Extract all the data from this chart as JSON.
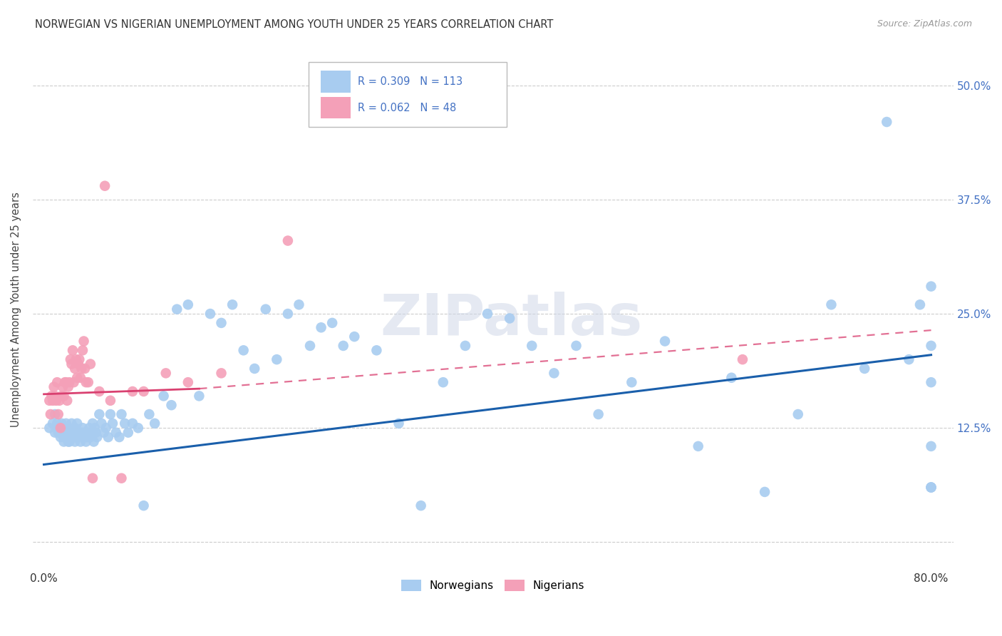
{
  "title": "NORWEGIAN VS NIGERIAN UNEMPLOYMENT AMONG YOUTH UNDER 25 YEARS CORRELATION CHART",
  "source": "Source: ZipAtlas.com",
  "ylabel": "Unemployment Among Youth under 25 years",
  "xlim": [
    -0.01,
    0.82
  ],
  "ylim": [
    -0.03,
    0.54
  ],
  "yticks": [
    0.0,
    0.125,
    0.25,
    0.375,
    0.5
  ],
  "ytick_labels": [
    "",
    "12.5%",
    "25.0%",
    "37.5%",
    "50.0%"
  ],
  "xticks": [
    0.0,
    0.2,
    0.4,
    0.6,
    0.8
  ],
  "xtick_labels": [
    "0.0%",
    "",
    "",
    "",
    "80.0%"
  ],
  "norwegian_color": "#A8CCF0",
  "nigerian_color": "#F4A0B8",
  "trendline_norwegian_color": "#1A5FAB",
  "trendline_nigerian_color": "#D94070",
  "watermark": "ZIPatlas",
  "background_color": "#FFFFFF",
  "grid_color": "#CCCCCC",
  "title_fontsize": 10.5,
  "label_fontsize": 10.5,
  "tick_color": "#4472C4",
  "tick_fontsize": 11,
  "legend_R_norwegian": "R = 0.309",
  "legend_N_norwegian": "N = 113",
  "legend_R_nigerian": "R = 0.062",
  "legend_N_nigerian": "N = 48",
  "nor_trend_x0": 0.0,
  "nor_trend_y0": 0.085,
  "nor_trend_x1": 0.8,
  "nor_trend_y1": 0.205,
  "nig_trend_solid_x0": 0.0,
  "nig_trend_solid_y0": 0.162,
  "nig_trend_solid_x1": 0.14,
  "nig_trend_solid_y1": 0.168,
  "nig_trend_dash_x0": 0.14,
  "nig_trend_dash_y0": 0.168,
  "nig_trend_dash_x1": 0.8,
  "nig_trend_dash_y1": 0.232,
  "norwegian_x": [
    0.005,
    0.008,
    0.01,
    0.01,
    0.012,
    0.013,
    0.015,
    0.015,
    0.016,
    0.017,
    0.018,
    0.018,
    0.019,
    0.02,
    0.02,
    0.021,
    0.022,
    0.022,
    0.023,
    0.023,
    0.024,
    0.025,
    0.025,
    0.026,
    0.027,
    0.028,
    0.028,
    0.029,
    0.03,
    0.03,
    0.031,
    0.032,
    0.033,
    0.034,
    0.035,
    0.036,
    0.037,
    0.038,
    0.039,
    0.04,
    0.041,
    0.042,
    0.043,
    0.044,
    0.045,
    0.046,
    0.047,
    0.048,
    0.05,
    0.052,
    0.054,
    0.056,
    0.058,
    0.06,
    0.062,
    0.065,
    0.068,
    0.07,
    0.073,
    0.076,
    0.08,
    0.085,
    0.09,
    0.095,
    0.1,
    0.108,
    0.115,
    0.12,
    0.13,
    0.14,
    0.15,
    0.16,
    0.17,
    0.18,
    0.19,
    0.2,
    0.21,
    0.22,
    0.23,
    0.24,
    0.25,
    0.26,
    0.27,
    0.28,
    0.3,
    0.32,
    0.34,
    0.36,
    0.38,
    0.4,
    0.42,
    0.44,
    0.46,
    0.48,
    0.5,
    0.53,
    0.56,
    0.59,
    0.62,
    0.65,
    0.68,
    0.71,
    0.74,
    0.76,
    0.78,
    0.79,
    0.8,
    0.8,
    0.8,
    0.8,
    0.8,
    0.8,
    0.8
  ],
  "norwegian_y": [
    0.125,
    0.13,
    0.12,
    0.14,
    0.13,
    0.12,
    0.125,
    0.115,
    0.13,
    0.12,
    0.115,
    0.11,
    0.125,
    0.12,
    0.13,
    0.115,
    0.11,
    0.125,
    0.12,
    0.11,
    0.115,
    0.13,
    0.12,
    0.115,
    0.12,
    0.125,
    0.11,
    0.115,
    0.12,
    0.13,
    0.115,
    0.12,
    0.11,
    0.12,
    0.125,
    0.115,
    0.12,
    0.11,
    0.115,
    0.12,
    0.125,
    0.115,
    0.12,
    0.13,
    0.11,
    0.125,
    0.12,
    0.115,
    0.14,
    0.13,
    0.12,
    0.125,
    0.115,
    0.14,
    0.13,
    0.12,
    0.115,
    0.14,
    0.13,
    0.12,
    0.13,
    0.125,
    0.04,
    0.14,
    0.13,
    0.16,
    0.15,
    0.255,
    0.26,
    0.16,
    0.25,
    0.24,
    0.26,
    0.21,
    0.19,
    0.255,
    0.2,
    0.25,
    0.26,
    0.215,
    0.235,
    0.24,
    0.215,
    0.225,
    0.21,
    0.13,
    0.04,
    0.175,
    0.215,
    0.25,
    0.245,
    0.215,
    0.185,
    0.215,
    0.14,
    0.175,
    0.22,
    0.105,
    0.18,
    0.055,
    0.14,
    0.26,
    0.19,
    0.46,
    0.2,
    0.26,
    0.28,
    0.215,
    0.175,
    0.105,
    0.06,
    0.06,
    0.06
  ],
  "nigerian_x": [
    0.005,
    0.006,
    0.007,
    0.008,
    0.009,
    0.01,
    0.011,
    0.012,
    0.013,
    0.014,
    0.015,
    0.016,
    0.017,
    0.018,
    0.019,
    0.02,
    0.021,
    0.022,
    0.023,
    0.024,
    0.025,
    0.026,
    0.027,
    0.028,
    0.029,
    0.03,
    0.031,
    0.032,
    0.033,
    0.034,
    0.035,
    0.036,
    0.037,
    0.038,
    0.04,
    0.042,
    0.044,
    0.05,
    0.055,
    0.06,
    0.07,
    0.08,
    0.09,
    0.11,
    0.13,
    0.16,
    0.22,
    0.63
  ],
  "nigerian_y": [
    0.155,
    0.14,
    0.16,
    0.155,
    0.17,
    0.16,
    0.155,
    0.175,
    0.14,
    0.155,
    0.125,
    0.16,
    0.17,
    0.16,
    0.175,
    0.175,
    0.155,
    0.17,
    0.175,
    0.2,
    0.195,
    0.21,
    0.175,
    0.19,
    0.2,
    0.18,
    0.195,
    0.2,
    0.18,
    0.19,
    0.21,
    0.22,
    0.19,
    0.175,
    0.175,
    0.195,
    0.07,
    0.165,
    0.39,
    0.155,
    0.07,
    0.165,
    0.165,
    0.185,
    0.175,
    0.185,
    0.33,
    0.2
  ]
}
